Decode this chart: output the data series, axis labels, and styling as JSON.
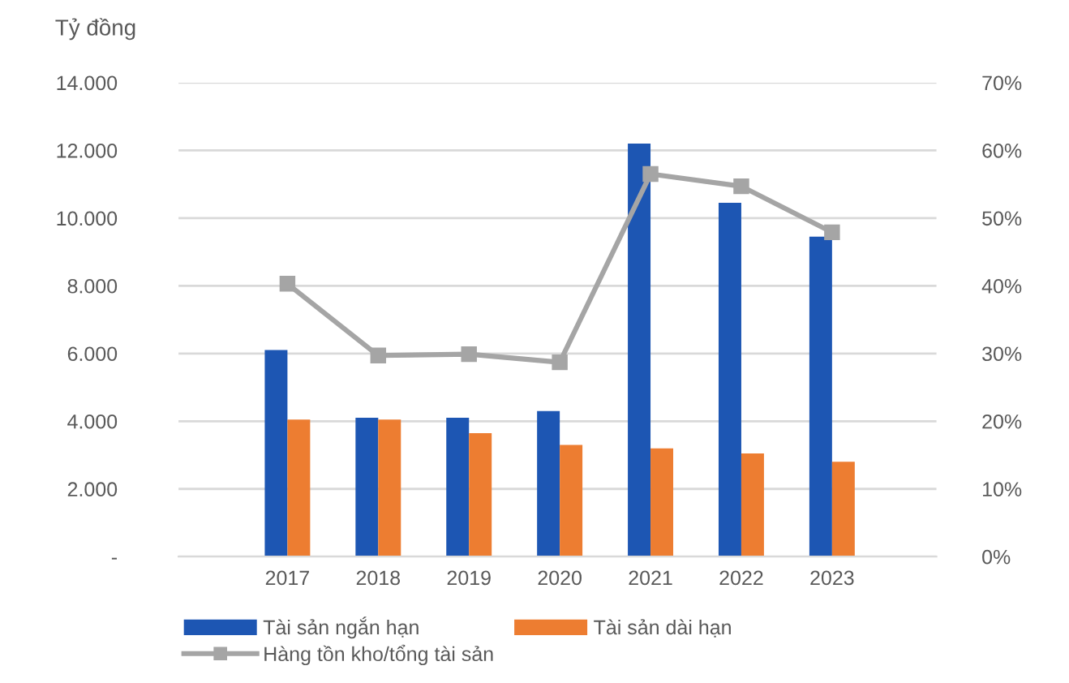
{
  "chart_data": {
    "type": "bar",
    "ylabel": "Tỷ đồng",
    "categories": [
      "2017",
      "2018",
      "2019",
      "2020",
      "2021",
      "2022",
      "2023"
    ],
    "series": [
      {
        "name": "Tài sản ngắn hạn",
        "color": "#1d56b3",
        "values": [
          6100,
          4100,
          4100,
          4300,
          12200,
          10450,
          9450
        ]
      },
      {
        "name": "Tài sản dài hạn",
        "color": "#ed7d31",
        "values": [
          4050,
          4050,
          3650,
          3300,
          3200,
          3050,
          2800
        ]
      },
      {
        "name": "Hàng tồn kho/tổng tài sản",
        "type": "line",
        "axis": "y2",
        "color": "#a5a5a5",
        "marker": "square",
        "values": [
          40.3,
          29.7,
          29.9,
          28.7,
          56.5,
          54.7,
          47.9
        ]
      }
    ],
    "ylim": [
      0,
      14000
    ],
    "yticks": [
      {
        "value": 0,
        "label": "-"
      },
      {
        "value": 2000,
        "label": "2.000"
      },
      {
        "value": 4000,
        "label": "4.000"
      },
      {
        "value": 6000,
        "label": "6.000"
      },
      {
        "value": 8000,
        "label": "8.000"
      },
      {
        "value": 10000,
        "label": "10.000"
      },
      {
        "value": 12000,
        "label": "12.000"
      },
      {
        "value": 14000,
        "label": "14.000"
      }
    ],
    "y2lim": [
      0,
      70
    ],
    "y2ticks": [
      {
        "value": 0,
        "label": "0%"
      },
      {
        "value": 10,
        "label": "10%"
      },
      {
        "value": 20,
        "label": "20%"
      },
      {
        "value": 30,
        "label": "30%"
      },
      {
        "value": 40,
        "label": "40%"
      },
      {
        "value": 50,
        "label": "50%"
      },
      {
        "value": 60,
        "label": "60%"
      },
      {
        "value": 70,
        "label": "70%"
      }
    ],
    "grid": "y",
    "legend": "bottom"
  }
}
